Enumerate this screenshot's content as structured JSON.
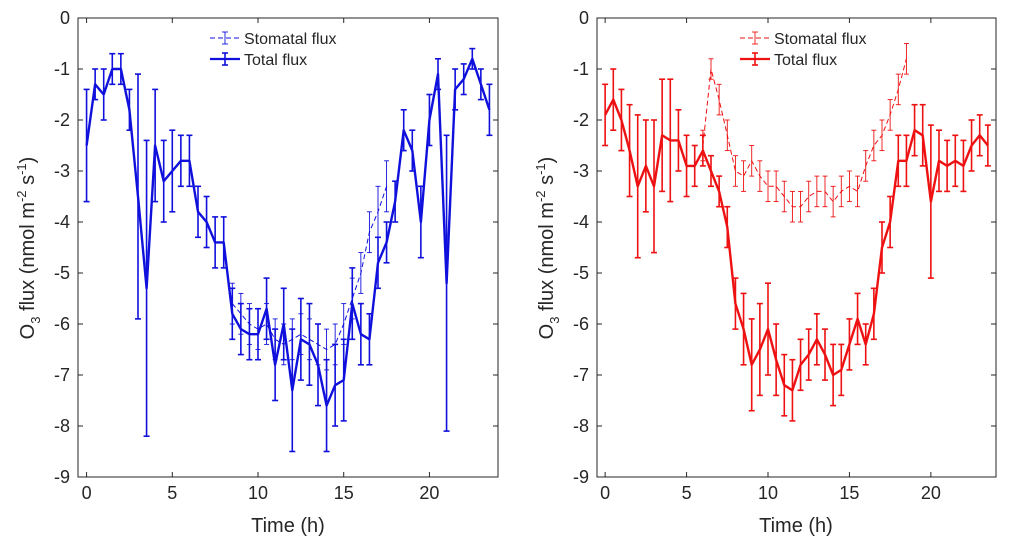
{
  "chart_data": [
    {
      "type": "line",
      "color": "#1010dd",
      "xlabel": "Time (h)",
      "ylabel_parts": {
        "main": "O",
        "sub": "3",
        "mid": " flux (nmol m",
        "sup1": "-2",
        "mid2": " s",
        "sup2": "-1",
        "end": ")"
      },
      "xlim": [
        -0.5,
        24
      ],
      "ylim": [
        -9,
        0
      ],
      "xticks": [
        0,
        5,
        10,
        15,
        20
      ],
      "yticks": [
        0,
        -1,
        -2,
        -3,
        -4,
        -5,
        -6,
        -7,
        -8,
        -9
      ],
      "grid": false,
      "legend_position": "top-center",
      "series": [
        {
          "name": "Stomatal flux",
          "style": "dashed",
          "x": [
            8.5,
            9,
            9.5,
            10,
            10.5,
            11,
            11.5,
            12,
            12.5,
            13,
            13.5,
            14,
            14.5,
            15,
            15.5,
            16,
            16.5,
            17,
            17.5
          ],
          "y": [
            -5.6,
            -5.8,
            -6.0,
            -6.1,
            -6.0,
            -6.3,
            -6.4,
            -6.3,
            -6.2,
            -6.3,
            -6.4,
            -6.5,
            -6.4,
            -6.0,
            -5.5,
            -5.0,
            -4.2,
            -3.8,
            -3.3
          ],
          "err": [
            0.4,
            0.4,
            0.4,
            0.4,
            0.4,
            0.4,
            0.4,
            0.4,
            0.4,
            0.4,
            0.4,
            0.4,
            0.4,
            0.4,
            0.4,
            0.4,
            0.4,
            0.5,
            0.5
          ]
        },
        {
          "name": "Total flux",
          "style": "solid",
          "x": [
            0,
            0.5,
            1,
            1.5,
            2,
            2.5,
            3,
            3.5,
            4,
            4.5,
            5,
            5.5,
            6,
            6.5,
            7,
            7.5,
            8,
            8.5,
            9,
            9.5,
            10,
            10.5,
            11,
            11.5,
            12,
            12.5,
            13,
            13.5,
            14,
            14.5,
            15,
            15.5,
            16,
            16.5,
            17,
            17.5,
            18,
            18.5,
            19,
            19.5,
            20,
            20.5,
            21,
            21.5,
            22,
            22.5,
            23,
            23.5
          ],
          "y": [
            -2.5,
            -1.3,
            -1.5,
            -1.0,
            -1.0,
            -1.8,
            -3.5,
            -5.3,
            -2.5,
            -3.2,
            -3.0,
            -2.8,
            -2.8,
            -3.8,
            -4.0,
            -4.4,
            -4.4,
            -5.8,
            -6.1,
            -6.2,
            -6.2,
            -5.7,
            -6.8,
            -6.0,
            -7.3,
            -6.3,
            -6.4,
            -6.8,
            -7.6,
            -7.2,
            -7.1,
            -5.6,
            -6.2,
            -6.3,
            -4.8,
            -4.4,
            -3.6,
            -2.2,
            -2.6,
            -4.0,
            -2.0,
            -1.1,
            -5.2,
            -1.4,
            -1.2,
            -0.8,
            -1.3,
            -1.8
          ],
          "err": [
            1.1,
            0.3,
            0.5,
            0.3,
            0.3,
            0.4,
            2.4,
            2.9,
            1.1,
            0.8,
            0.8,
            0.5,
            0.5,
            0.5,
            0.5,
            0.5,
            0.5,
            0.5,
            0.5,
            0.5,
            0.5,
            0.6,
            0.7,
            0.7,
            1.2,
            0.8,
            0.8,
            0.8,
            0.9,
            0.8,
            0.8,
            0.7,
            0.6,
            0.5,
            0.5,
            0.4,
            0.4,
            0.4,
            0.4,
            0.7,
            0.5,
            0.3,
            2.9,
            0.4,
            0.3,
            0.2,
            0.3,
            0.5
          ]
        }
      ]
    },
    {
      "type": "line",
      "color": "#ee1111",
      "xlabel": "Time (h)",
      "ylabel_parts": {
        "main": "O",
        "sub": "3",
        "mid": " flux (nmol m",
        "sup1": "-2",
        "mid2": " s",
        "sup2": "-1",
        "end": ")"
      },
      "xlim": [
        -0.5,
        24
      ],
      "ylim": [
        -9,
        0
      ],
      "xticks": [
        0,
        5,
        10,
        15,
        20
      ],
      "yticks": [
        0,
        -1,
        -2,
        -3,
        -4,
        -5,
        -6,
        -7,
        -8,
        -9
      ],
      "grid": false,
      "legend_position": "top-center",
      "series": [
        {
          "name": "Stomatal flux",
          "style": "dashed",
          "x": [
            6,
            6.5,
            7,
            7.5,
            8,
            8.5,
            9,
            9.5,
            10,
            10.5,
            11,
            11.5,
            12,
            12.5,
            13,
            13.5,
            14,
            14.5,
            15,
            15.5,
            16,
            16.5,
            17,
            17.5,
            18,
            18.5
          ],
          "y": [
            -2.5,
            -1.0,
            -1.6,
            -2.3,
            -3.0,
            -3.1,
            -2.8,
            -3.1,
            -3.3,
            -3.3,
            -3.5,
            -3.7,
            -3.7,
            -3.5,
            -3.4,
            -3.4,
            -3.6,
            -3.4,
            -3.3,
            -3.4,
            -2.9,
            -2.5,
            -2.3,
            -1.9,
            -1.4,
            -0.8
          ],
          "err": [
            0.3,
            0.2,
            0.3,
            0.3,
            0.3,
            0.3,
            0.3,
            0.3,
            0.3,
            0.3,
            0.3,
            0.3,
            0.3,
            0.3,
            0.3,
            0.3,
            0.3,
            0.3,
            0.3,
            0.3,
            0.3,
            0.3,
            0.3,
            0.3,
            0.3,
            0.3
          ]
        },
        {
          "name": "Total flux",
          "style": "solid",
          "x": [
            0,
            0.5,
            1,
            1.5,
            2,
            2.5,
            3,
            3.5,
            4,
            4.5,
            5,
            5.5,
            6,
            6.5,
            7,
            7.5,
            8,
            8.5,
            9,
            9.5,
            10,
            10.5,
            11,
            11.5,
            12,
            12.5,
            13,
            13.5,
            14,
            14.5,
            15,
            15.5,
            16,
            16.5,
            17,
            17.5,
            18,
            18.5,
            19,
            19.5,
            20,
            20.5,
            21,
            21.5,
            22,
            22.5,
            23,
            23.5
          ],
          "y": [
            -1.9,
            -1.6,
            -2.0,
            -2.6,
            -3.3,
            -2.9,
            -3.3,
            -2.3,
            -2.4,
            -2.4,
            -2.9,
            -2.9,
            -2.6,
            -3.0,
            -3.4,
            -4.1,
            -5.6,
            -6.1,
            -6.8,
            -6.5,
            -6.1,
            -6.7,
            -7.2,
            -7.3,
            -6.8,
            -6.6,
            -6.3,
            -6.6,
            -7.0,
            -6.9,
            -6.4,
            -5.9,
            -6.4,
            -5.8,
            -4.5,
            -4.0,
            -2.8,
            -2.8,
            -2.2,
            -2.3,
            -3.6,
            -2.8,
            -2.9,
            -2.8,
            -2.9,
            -2.5,
            -2.3,
            -2.5
          ],
          "err": [
            0.6,
            0.6,
            0.6,
            0.9,
            1.4,
            0.9,
            1.3,
            1.1,
            1.2,
            0.6,
            0.6,
            0.4,
            0.3,
            0.3,
            0.3,
            0.4,
            0.5,
            0.7,
            0.9,
            0.9,
            0.9,
            0.7,
            0.6,
            0.6,
            0.5,
            0.5,
            0.5,
            0.5,
            0.6,
            0.5,
            0.5,
            0.5,
            0.4,
            0.5,
            0.5,
            0.5,
            0.5,
            0.5,
            0.5,
            0.6,
            1.5,
            0.6,
            0.5,
            0.5,
            0.5,
            0.5,
            0.4,
            0.4
          ]
        }
      ]
    }
  ]
}
